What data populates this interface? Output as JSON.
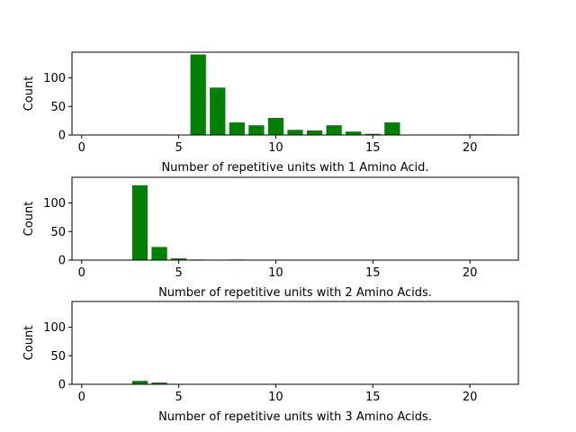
{
  "chart_data": [
    {
      "type": "bar",
      "xlabel": "Number of repetitive units with 1 Amino Acid.",
      "ylabel": "Count",
      "xlim": [
        -0.5,
        22.5
      ],
      "ylim": [
        0,
        145
      ],
      "xticks": [
        0,
        5,
        10,
        15,
        20
      ],
      "yticks": [
        0,
        50,
        100
      ],
      "bar_color": "#008000",
      "x": [
        6,
        7,
        8,
        9,
        10,
        11,
        12,
        13,
        14,
        15,
        16,
        20,
        21
      ],
      "values": [
        141,
        83,
        22,
        17,
        30,
        9,
        8,
        17,
        6,
        2,
        22,
        1,
        1
      ]
    },
    {
      "type": "bar",
      "xlabel": "Number of repetitive units with 2 Amino Acids.",
      "ylabel": "Count",
      "xlim": [
        -0.5,
        22.5
      ],
      "ylim": [
        0,
        145
      ],
      "xticks": [
        0,
        5,
        10,
        15,
        20
      ],
      "yticks": [
        0,
        50,
        100
      ],
      "bar_color": "#008000",
      "x": [
        3,
        4,
        5,
        6,
        8
      ],
      "values": [
        131,
        23,
        3,
        1,
        1
      ]
    },
    {
      "type": "bar",
      "xlabel": "Number of repetitive units with 3 Amino Acids.",
      "ylabel": "Count",
      "xlim": [
        -0.5,
        22.5
      ],
      "ylim": [
        0,
        145
      ],
      "xticks": [
        0,
        5,
        10,
        15,
        20
      ],
      "yticks": [
        0,
        50,
        100
      ],
      "bar_color": "#008000",
      "x": [
        3,
        4
      ],
      "values": [
        6,
        3
      ]
    }
  ]
}
